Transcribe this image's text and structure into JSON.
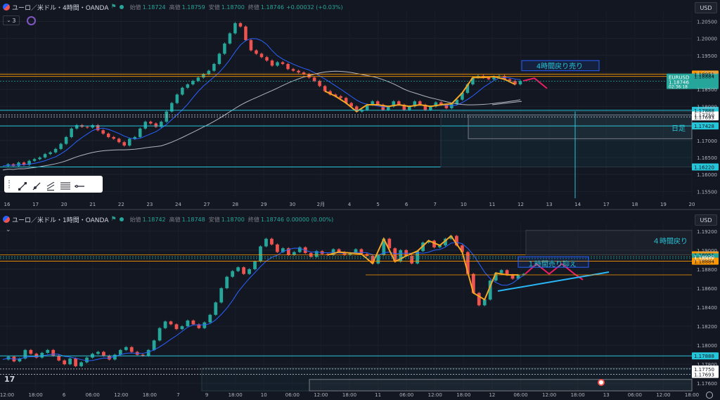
{
  "top": {
    "title": "ユーロ／米ドル・4時間・OANDA",
    "ohlc": [
      {
        "label": "始値",
        "value": "1.18724"
      },
      {
        "label": "高値",
        "value": "1.18759"
      },
      {
        "label": "安値",
        "value": "1.18700"
      },
      {
        "label": "終値",
        "value": "1.18746"
      }
    ],
    "change": "+0.00032 (+0.03%)",
    "indicator_count": "3",
    "currency": "USD"
  },
  "bottom": {
    "title": "ユーロ／米ドル・1時間・OANDA",
    "ohlc": [
      {
        "label": "始値",
        "value": "1.18742"
      },
      {
        "label": "高値",
        "value": "1.18748"
      },
      {
        "label": "安値",
        "value": "1.18700"
      },
      {
        "label": "終値",
        "value": "1.18746"
      }
    ],
    "change": "0.00000 (0.00%)",
    "currency": "USD"
  },
  "colors": {
    "bg": "#131722",
    "up": "#26a69a",
    "down": "#ef5350",
    "ma_blue": "#2962ff",
    "ma_gray": "#b2b5be",
    "zigzag": "#f5a623",
    "proj": "#e91e63",
    "cyan": "#26c6da",
    "trend": "#29b6f6"
  },
  "chart_data": [
    {
      "type": "candlestick",
      "title": "ユーロ／米ドル・4時間・OANDA",
      "x_tick_labels": [
        "16",
        "17",
        "20",
        "21",
        "22",
        "23",
        "24",
        "27",
        "28",
        "29",
        "30",
        "2月",
        "4",
        "5",
        "6",
        "7",
        "10",
        "11",
        "12",
        "13",
        "14",
        "17",
        "18",
        "19",
        "20"
      ],
      "y_tick_labels": [
        "1.15500",
        "1.16000",
        "1.16500",
        "1.17000",
        "1.18000",
        "1.18500",
        "1.19000",
        "1.19500",
        "1.20000",
        "1.20500"
      ],
      "ylim": [
        1.153,
        1.208
      ],
      "close_path": [
        1.1625,
        1.163,
        1.1625,
        1.1635,
        1.1628,
        1.164,
        1.1645,
        1.165,
        1.166,
        1.1665,
        1.1675,
        1.169,
        1.171,
        1.1735,
        1.1745,
        1.174,
        1.1738,
        1.1745,
        1.173,
        1.172,
        1.171,
        1.1705,
        1.1695,
        1.1685,
        1.1705,
        1.171,
        1.1735,
        1.1755,
        1.175,
        1.174,
        1.1755,
        1.1785,
        1.181,
        1.1835,
        1.1855,
        1.1865,
        1.1875,
        1.1885,
        1.1895,
        1.1905,
        1.1925,
        1.1955,
        1.1985,
        1.2015,
        1.2045,
        1.2035,
        1.1995,
        1.1965,
        1.1955,
        1.1945,
        1.1935,
        1.192,
        1.193,
        1.1925,
        1.191,
        1.1905,
        1.19,
        1.1895,
        1.1885,
        1.1875,
        1.186,
        1.1845,
        1.1835,
        1.183,
        1.1825,
        1.181,
        1.18,
        1.1785,
        1.179,
        1.1805,
        1.1815,
        1.1805,
        1.179,
        1.18,
        1.1815,
        1.1805,
        1.179,
        1.18,
        1.1815,
        1.1805,
        1.179,
        1.18,
        1.1812,
        1.1805,
        1.1795,
        1.1808,
        1.182,
        1.184,
        1.1865,
        1.1885,
        1.189,
        1.1885,
        1.188,
        1.1888,
        1.189,
        1.188,
        1.1875,
        1.1865,
        1.1875
      ],
      "annotations": [
        "4時間戻り売り",
        "日足"
      ],
      "price_labels": [
        {
          "value": "1.18951",
          "kind": "orange"
        },
        {
          "value": "1.18884",
          "kind": "orange"
        },
        {
          "value": "EURUSD",
          "kind": "green",
          "sub": "1.18746",
          "sub2": "02:36:18"
        },
        {
          "value": "1.17888",
          "kind": "cyan"
        },
        {
          "value": "1.17750",
          "kind": "white"
        },
        {
          "value": "1.17693",
          "kind": "white"
        },
        {
          "value": "1.17428",
          "kind": "cyan"
        },
        {
          "value": "1.16220",
          "kind": "cyan"
        }
      ]
    },
    {
      "type": "candlestick",
      "title": "ユーロ／米ドル・1時間・OANDA",
      "x_tick_labels": [
        "12:00",
        "18:00",
        "6",
        "06:00",
        "12:00",
        "18:00",
        "7",
        "9",
        "18:00",
        "10",
        "06:00",
        "12:00",
        "18:00",
        "11",
        "06:00",
        "12:00",
        "18:00",
        "12",
        "06:00",
        "12:00",
        "18:00",
        "13",
        "06:00",
        "12:00",
        "18:00"
      ],
      "y_tick_labels": [
        "1.17600",
        "1.17800",
        "1.18000",
        "1.18200",
        "1.18400",
        "1.18600",
        "1.18800",
        "1.19000",
        "1.19200"
      ],
      "ylim": [
        1.1752,
        1.1928
      ],
      "close_path": [
        1.1785,
        1.1788,
        1.1783,
        1.1786,
        1.1795,
        1.1791,
        1.1787,
        1.1792,
        1.1795,
        1.1789,
        1.1784,
        1.178,
        1.1786,
        1.1778,
        1.1782,
        1.1787,
        1.1791,
        1.1793,
        1.1789,
        1.1785,
        1.179,
        1.1795,
        1.1798,
        1.1793,
        1.179,
        1.1789,
        1.1795,
        1.1805,
        1.1818,
        1.1825,
        1.1822,
        1.1817,
        1.182,
        1.1826,
        1.1822,
        1.1818,
        1.1824,
        1.1832,
        1.1845,
        1.186,
        1.1872,
        1.1878,
        1.1882,
        1.1875,
        1.188,
        1.1888,
        1.1904,
        1.1912,
        1.1906,
        1.1898,
        1.1902,
        1.1895,
        1.1898,
        1.1903,
        1.1897,
        1.1893,
        1.1899,
        1.1896,
        1.1895,
        1.1901,
        1.1898,
        1.1895,
        1.1897,
        1.1901,
        1.1896,
        1.1894,
        1.1886,
        1.1895,
        1.1912,
        1.1902,
        1.1888,
        1.19,
        1.1894,
        1.1886,
        1.1899,
        1.1908,
        1.191,
        1.1903,
        1.1905,
        1.1912,
        1.1915,
        1.1905,
        1.1898,
        1.1875,
        1.1855,
        1.1842,
        1.1848,
        1.1868,
        1.1876,
        1.1879,
        1.1874,
        1.187,
        1.1874,
        1.1875
      ],
      "annotations": [
        "４時間戻り",
        "１時間売り抑え"
      ],
      "price_labels": [
        {
          "value": "1.18951",
          "kind": "orange"
        },
        {
          "value": "1.18930",
          "kind": "green"
        },
        {
          "value": "1.18911",
          "kind": "green"
        },
        {
          "value": "1.18884",
          "kind": "orange"
        },
        {
          "value": "1.18746",
          "kind": "green",
          "sub": "36:19"
        },
        {
          "value": "1.17888",
          "kind": "cyan"
        },
        {
          "value": "1.17750",
          "kind": "white"
        },
        {
          "value": "1.17693",
          "kind": "white"
        }
      ]
    }
  ]
}
